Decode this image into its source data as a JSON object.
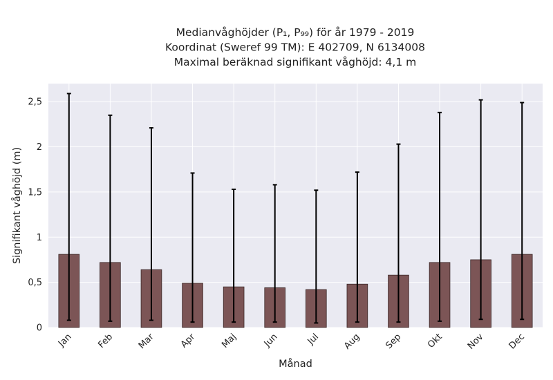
{
  "chart_data": {
    "type": "bar",
    "title_lines": [
      "Medianvåghöjder (P₁, P₉₉) för år 1979 - 2019",
      "Koordinat (Sweref 99 TM): E 402709, N 6134008",
      "Maximal beräknad signifikant våghöjd: 4,1 m"
    ],
    "xlabel": "Månad",
    "ylabel": "Signifikant våghöjd (m)",
    "categories": [
      "Jan",
      "Feb",
      "Mar",
      "Apr",
      "Maj",
      "Jun",
      "Jul",
      "Aug",
      "Sep",
      "Okt",
      "Nov",
      "Dec"
    ],
    "values": [
      0.81,
      0.72,
      0.64,
      0.49,
      0.45,
      0.44,
      0.42,
      0.48,
      0.58,
      0.72,
      0.75,
      0.81
    ],
    "p1": [
      0.08,
      0.07,
      0.08,
      0.06,
      0.06,
      0.06,
      0.05,
      0.06,
      0.06,
      0.07,
      0.09,
      0.09
    ],
    "p99": [
      2.59,
      2.35,
      2.21,
      1.71,
      1.53,
      1.58,
      1.52,
      1.72,
      2.03,
      2.38,
      2.52,
      2.49
    ],
    "ylim": [
      0,
      2.7
    ],
    "yticks": [
      {
        "value": 0,
        "label": "0"
      },
      {
        "value": 0.5,
        "label": "0,5"
      },
      {
        "value": 1,
        "label": "1"
      },
      {
        "value": 1.5,
        "label": "1,5"
      },
      {
        "value": 2,
        "label": "2"
      },
      {
        "value": 2.5,
        "label": "2,5"
      }
    ],
    "grid": true,
    "legend": "none",
    "colors": {
      "plot_background": "#eaeaf2",
      "bar": "#7c5556",
      "error_bar": "#000000"
    }
  }
}
